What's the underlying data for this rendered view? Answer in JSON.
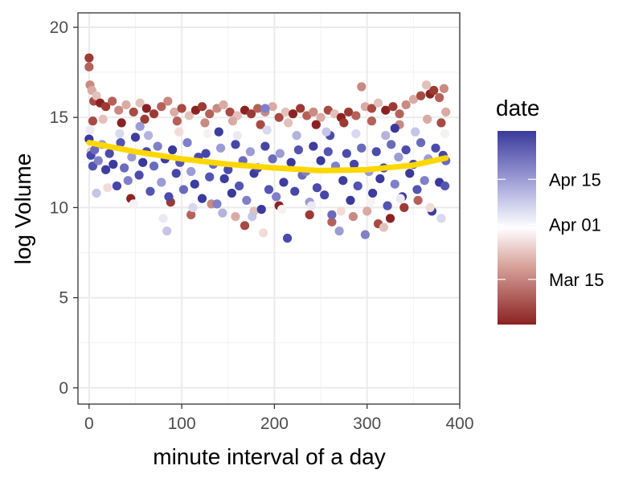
{
  "chart_data": {
    "type": "scatter",
    "title": "",
    "xlabel": "minute interval of a day",
    "ylabel": "log Volume",
    "xlim": [
      -12,
      400
    ],
    "ylim": [
      -0.9,
      20.8
    ],
    "x_ticks": [
      0,
      100,
      200,
      300,
      400
    ],
    "y_ticks": [
      0,
      5,
      10,
      15,
      20
    ],
    "grid": true,
    "point_color_variable": "date",
    "legend": {
      "title": "date",
      "position": "right",
      "type": "colorbar",
      "date_range": [
        "2017-03-01",
        "2017-04-30"
      ],
      "labels": [
        {
          "text": "Apr 15",
          "date": "2017-04-15"
        },
        {
          "text": "Apr 01",
          "date": "2017-04-01"
        },
        {
          "text": "Mar 15",
          "date": "2017-03-15"
        }
      ]
    },
    "color_scale": {
      "low": "#8b2222",
      "mid": "#ffffff",
      "high": "#3a3a9c",
      "midpoint_date": "2017-04-01"
    },
    "series": [
      {
        "group": "earlier dates (red shades)",
        "points": [
          [
            0,
            18.3
          ],
          [
            0,
            17.8
          ],
          [
            1,
            16.8
          ],
          [
            3,
            16.5
          ],
          [
            5,
            15.9
          ],
          [
            8,
            16.2
          ],
          [
            12,
            15.8
          ],
          [
            18,
            15.6
          ],
          [
            25,
            15.9
          ],
          [
            32,
            15.4
          ],
          [
            40,
            15.7
          ],
          [
            48,
            15.3
          ],
          [
            55,
            15.8
          ],
          [
            62,
            15.5
          ],
          [
            70,
            15.2
          ],
          [
            78,
            15.6
          ],
          [
            85,
            15.9
          ],
          [
            92,
            15.3
          ],
          [
            100,
            15.5
          ],
          [
            108,
            15.1
          ],
          [
            115,
            15.4
          ],
          [
            122,
            15.6
          ],
          [
            130,
            15.2
          ],
          [
            138,
            15.5
          ],
          [
            145,
            15.7
          ],
          [
            152,
            15.3
          ],
          [
            160,
            15.1
          ],
          [
            168,
            15.4
          ],
          [
            175,
            15.2
          ],
          [
            182,
            15.5
          ],
          [
            190,
            15.3
          ],
          [
            198,
            15.6
          ],
          [
            205,
            15.0
          ],
          [
            212,
            15.3
          ],
          [
            220,
            15.2
          ],
          [
            228,
            15.5
          ],
          [
            235,
            15.1
          ],
          [
            242,
            15.3
          ],
          [
            250,
            15.0
          ],
          [
            258,
            15.4
          ],
          [
            265,
            15.2
          ],
          [
            272,
            15.0
          ],
          [
            280,
            15.3
          ],
          [
            288,
            15.1
          ],
          [
            294,
            16.7
          ],
          [
            298,
            15.6
          ],
          [
            305,
            15.5
          ],
          [
            312,
            15.8
          ],
          [
            320,
            15.4
          ],
          [
            328,
            15.6
          ],
          [
            335,
            15.2
          ],
          [
            342,
            15.7
          ],
          [
            350,
            16.0
          ],
          [
            358,
            16.2
          ],
          [
            364,
            16.8
          ],
          [
            368,
            16.3
          ],
          [
            372,
            16.5
          ],
          [
            378,
            16.1
          ],
          [
            383,
            16.6
          ],
          [
            385,
            15.3
          ],
          [
            4,
            14.8
          ],
          [
            15,
            14.9
          ],
          [
            35,
            14.7
          ],
          [
            60,
            14.9
          ],
          [
            95,
            14.8
          ],
          [
            125,
            14.7
          ],
          [
            155,
            14.8
          ],
          [
            185,
            14.6
          ],
          [
            215,
            14.7
          ],
          [
            245,
            14.6
          ],
          [
            275,
            14.7
          ],
          [
            305,
            14.8
          ],
          [
            335,
            14.6
          ],
          [
            365,
            14.9
          ],
          [
            380,
            14.7
          ],
          [
            2,
            13.1
          ],
          [
            45,
            10.5
          ],
          [
            88,
            10.3
          ],
          [
            110,
            9.6
          ],
          [
            132,
            10.2
          ],
          [
            158,
            9.5
          ],
          [
            168,
            9.0
          ],
          [
            178,
            9.8
          ],
          [
            205,
            10.1
          ],
          [
            238,
            9.6
          ],
          [
            262,
            9.2
          ],
          [
            285,
            9.5
          ],
          [
            300,
            9.8
          ],
          [
            312,
            9.1
          ],
          [
            318,
            8.9
          ],
          [
            325,
            9.4
          ],
          [
            340,
            10.0
          ],
          [
            355,
            10.4
          ]
        ]
      },
      {
        "group": "later dates (blue shades)",
        "points": [
          [
            0,
            13.8
          ],
          [
            2,
            12.9
          ],
          [
            4,
            12.3
          ],
          [
            6,
            13.2
          ],
          [
            10,
            12.6
          ],
          [
            14,
            13.5
          ],
          [
            18,
            12.1
          ],
          [
            22,
            13.0
          ],
          [
            26,
            12.4
          ],
          [
            30,
            11.2
          ],
          [
            34,
            13.6
          ],
          [
            38,
            12.2
          ],
          [
            42,
            11.5
          ],
          [
            46,
            12.8
          ],
          [
            50,
            13.9
          ],
          [
            54,
            11.8
          ],
          [
            58,
            12.5
          ],
          [
            62,
            13.1
          ],
          [
            66,
            10.9
          ],
          [
            70,
            12.3
          ],
          [
            74,
            13.4
          ],
          [
            78,
            11.4
          ],
          [
            82,
            12.7
          ],
          [
            86,
            10.6
          ],
          [
            90,
            13.2
          ],
          [
            94,
            11.9
          ],
          [
            98,
            12.5
          ],
          [
            102,
            11.0
          ],
          [
            106,
            13.6
          ],
          [
            110,
            12.0
          ],
          [
            114,
            11.3
          ],
          [
            118,
            12.8
          ],
          [
            122,
            10.5
          ],
          [
            126,
            13.0
          ],
          [
            130,
            11.7
          ],
          [
            134,
            12.4
          ],
          [
            138,
            10.2
          ],
          [
            142,
            13.3
          ],
          [
            146,
            11.6
          ],
          [
            150,
            12.1
          ],
          [
            154,
            10.8
          ],
          [
            158,
            13.5
          ],
          [
            162,
            11.2
          ],
          [
            166,
            12.6
          ],
          [
            170,
            10.4
          ],
          [
            174,
            13.1
          ],
          [
            178,
            11.9
          ],
          [
            182,
            12.2
          ],
          [
            186,
            9.9
          ],
          [
            190,
            13.4
          ],
          [
            194,
            11.0
          ],
          [
            198,
            12.7
          ],
          [
            202,
            10.6
          ],
          [
            206,
            13.0
          ],
          [
            210,
            11.4
          ],
          [
            214,
            8.3
          ],
          [
            218,
            12.5
          ],
          [
            222,
            10.9
          ],
          [
            226,
            13.2
          ],
          [
            230,
            11.8
          ],
          [
            234,
            12.0
          ],
          [
            238,
            10.3
          ],
          [
            242,
            13.4
          ],
          [
            246,
            11.1
          ],
          [
            250,
            12.6
          ],
          [
            254,
            10.7
          ],
          [
            258,
            13.1
          ],
          [
            262,
            9.6
          ],
          [
            266,
            12.3
          ],
          [
            270,
            8.7
          ],
          [
            274,
            11.5
          ],
          [
            278,
            13.0
          ],
          [
            282,
            10.4
          ],
          [
            286,
            12.4
          ],
          [
            290,
            11.2
          ],
          [
            294,
            13.3
          ],
          [
            298,
            8.5
          ],
          [
            302,
            12.0
          ],
          [
            306,
            10.8
          ],
          [
            310,
            13.1
          ],
          [
            314,
            11.6
          ],
          [
            318,
            12.2
          ],
          [
            322,
            10.1
          ],
          [
            326,
            13.5
          ],
          [
            330,
            11.3
          ],
          [
            334,
            12.8
          ],
          [
            338,
            10.6
          ],
          [
            342,
            13.2
          ],
          [
            346,
            11.9
          ],
          [
            350,
            12.4
          ],
          [
            354,
            11.0
          ],
          [
            358,
            13.6
          ],
          [
            362,
            11.5
          ],
          [
            366,
            12.7
          ],
          [
            370,
            9.8
          ],
          [
            374,
            13.3
          ],
          [
            378,
            11.4
          ],
          [
            382,
            12.9
          ],
          [
            384,
            11.2
          ],
          [
            385,
            12.6
          ],
          [
            190,
            15.5
          ],
          [
            55,
            14.5
          ],
          [
            140,
            14.2
          ],
          [
            260,
            14.0
          ],
          [
            330,
            14.4
          ]
        ]
      },
      {
        "group": "dates near Apr 01 (pale shades)",
        "points": [
          [
            1,
            14.3
          ],
          [
            8,
            10.8
          ],
          [
            20,
            11.1
          ],
          [
            33,
            14.1
          ],
          [
            48,
            10.2
          ],
          [
            64,
            14.0
          ],
          [
            80,
            9.4
          ],
          [
            84,
            8.7
          ],
          [
            97,
            14.2
          ],
          [
            112,
            10.0
          ],
          [
            128,
            14.1
          ],
          [
            144,
            9.7
          ],
          [
            160,
            14.0
          ],
          [
            176,
            9.5
          ],
          [
            188,
            8.6
          ],
          [
            192,
            14.3
          ],
          [
            208,
            9.9
          ],
          [
            224,
            14.0
          ],
          [
            240,
            10.1
          ],
          [
            256,
            14.2
          ],
          [
            272,
            9.8
          ],
          [
            288,
            14.1
          ],
          [
            304,
            10.3
          ],
          [
            320,
            14.0
          ],
          [
            336,
            10.5
          ],
          [
            352,
            14.2
          ],
          [
            368,
            10.0
          ],
          [
            380,
            9.4
          ],
          [
            384,
            14.1
          ]
        ]
      }
    ],
    "smooth_line": {
      "color": "#ffd700",
      "points": [
        [
          0,
          13.6
        ],
        [
          50,
          13.1
        ],
        [
          100,
          12.7
        ],
        [
          150,
          12.4
        ],
        [
          200,
          12.2
        ],
        [
          250,
          12.05
        ],
        [
          300,
          12.1
        ],
        [
          350,
          12.35
        ],
        [
          385,
          12.75
        ]
      ]
    }
  }
}
